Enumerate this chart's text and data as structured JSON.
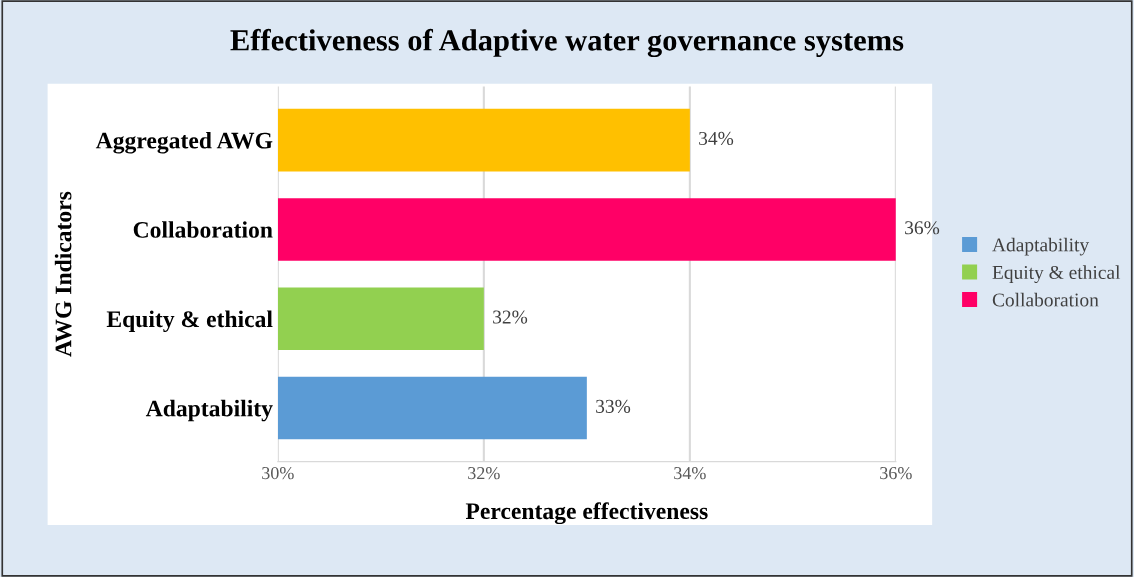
{
  "chart_data": {
    "type": "bar",
    "orientation": "horizontal",
    "title": "Effectiveness of Adaptive water governance systems",
    "xlabel": "Percentage effectiveness",
    "ylabel": "AWG Indicators",
    "categories": [
      "Aggregated AWG",
      "Collaboration",
      "Equity & ethical",
      "Adaptability"
    ],
    "series": [
      {
        "name": "Adaptability",
        "color": "#5b9bd5",
        "values": [
          null,
          null,
          null,
          33
        ],
        "value_labels": [
          null,
          null,
          null,
          "33%"
        ]
      },
      {
        "name": "Equity & ethical",
        "color": "#92d050",
        "values": [
          null,
          null,
          32,
          null
        ],
        "value_labels": [
          null,
          null,
          "32%",
          null
        ]
      },
      {
        "name": "Collaboration",
        "color": "#ff0066",
        "values": [
          null,
          36,
          null,
          null
        ],
        "value_labels": [
          null,
          "36%",
          null,
          null
        ]
      },
      {
        "color": "#ffc000",
        "values": [
          34,
          null,
          null,
          null
        ],
        "value_labels": [
          "34%",
          null,
          null,
          null
        ]
      }
    ],
    "xlim": [
      30,
      36
    ],
    "xticks": [
      {
        "value": 30,
        "label": "30%"
      },
      {
        "value": 32,
        "label": "32%"
      },
      {
        "value": 34,
        "label": "34%"
      },
      {
        "value": 36,
        "label": "36%"
      }
    ],
    "grid": "x",
    "legend": "right"
  }
}
